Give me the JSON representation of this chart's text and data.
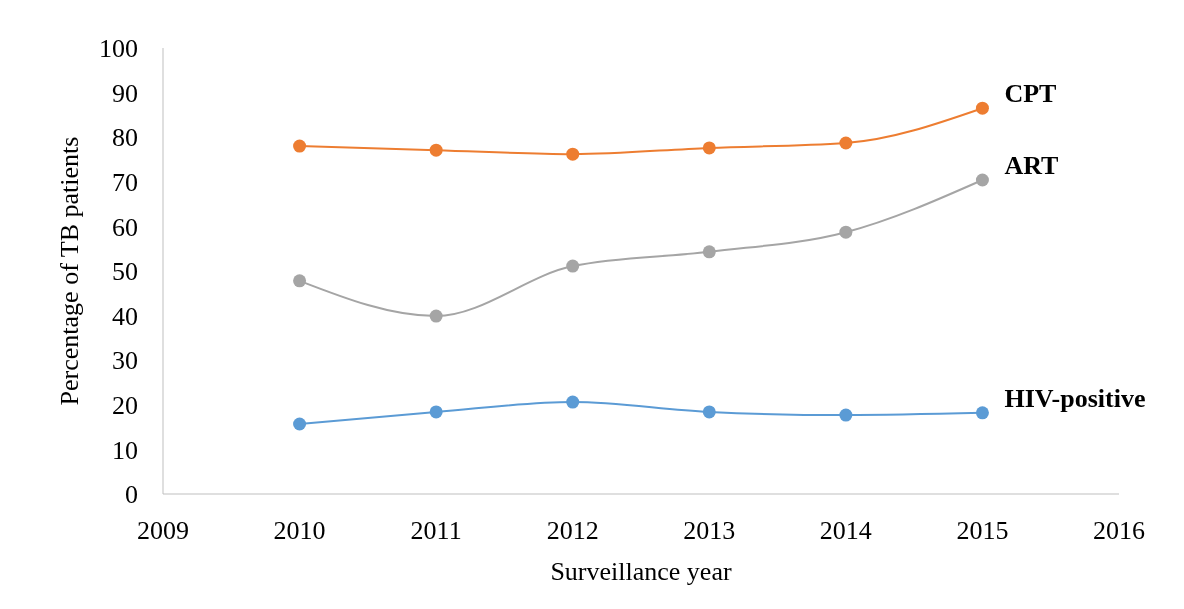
{
  "chart_data": {
    "type": "line",
    "xlabel": "Surveillance year",
    "ylabel": "Percentage of TB patients",
    "x": [
      2010,
      2011,
      2012,
      2013,
      2014,
      2015
    ],
    "xlim": [
      2009,
      2016
    ],
    "xticks": [
      2009,
      2010,
      2011,
      2012,
      2013,
      2014,
      2015,
      2016
    ],
    "ylim": [
      0,
      100
    ],
    "yticks": [
      0,
      10,
      20,
      30,
      40,
      50,
      60,
      70,
      80,
      90,
      100
    ],
    "grid": false,
    "marker": "circle",
    "line_style": "solid",
    "series": [
      {
        "name": "CPT",
        "color": "#ed7d31",
        "values": [
          78,
          77.1,
          76.2,
          77.6,
          78.7,
          86.5
        ]
      },
      {
        "name": "ART",
        "color": "#a5a5a5",
        "values": [
          47.8,
          39.9,
          51.1,
          54.3,
          58.7,
          70.4
        ]
      },
      {
        "name": "HIV-positive",
        "color": "#5b9bd5",
        "values": [
          15.7,
          18.4,
          20.6,
          18.4,
          17.7,
          18.2
        ]
      }
    ]
  }
}
